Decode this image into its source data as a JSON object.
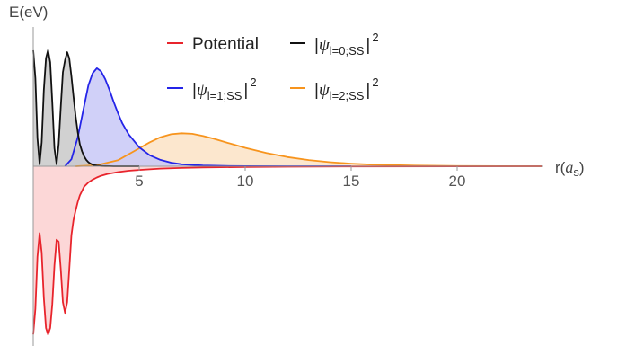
{
  "chart_data": {
    "type": "line",
    "xlabel_main": "r(",
    "xlabel_sym": "a",
    "xlabel_sub": "s",
    "xlabel_close": ")",
    "ylabel": "E(eV)",
    "xlim": [
      0,
      24
    ],
    "ylim": [
      -8,
      6.2
    ],
    "xticks": [
      5,
      10,
      15,
      20
    ],
    "grid": false,
    "legend_placement": "top-right",
    "series": [
      {
        "key": "potential",
        "legend": {
          "main": "Potential"
        },
        "color": "#e8242c",
        "fill": "#fbd0d0",
        "x": [
          0,
          0.1,
          0.2,
          0.3,
          0.4,
          0.5,
          0.6,
          0.7,
          0.8,
          0.9,
          1.0,
          1.1,
          1.2,
          1.3,
          1.4,
          1.5,
          1.6,
          1.7,
          1.8,
          1.9,
          2.0,
          2.1,
          2.2,
          2.4,
          2.6,
          2.8,
          3.0,
          3.2,
          3.5,
          4.0,
          4.5,
          5.0,
          6.0,
          7.0,
          8.0,
          10.0,
          12.0,
          15.0,
          24.0
        ],
        "values": [
          -7.8,
          -6.6,
          -4.2,
          -3.1,
          -4.0,
          -6.1,
          -7.5,
          -7.8,
          -7.5,
          -6.4,
          -4.6,
          -3.4,
          -3.5,
          -4.8,
          -6.3,
          -6.8,
          -6.3,
          -4.8,
          -3.2,
          -2.5,
          -2.05,
          -1.65,
          -1.35,
          -0.95,
          -0.75,
          -0.62,
          -0.52,
          -0.44,
          -0.36,
          -0.27,
          -0.21,
          -0.17,
          -0.11,
          -0.08,
          -0.06,
          -0.035,
          -0.02,
          -0.01,
          0.0
        ]
      },
      {
        "key": "psi0",
        "legend": {
          "pre": "|",
          "sym": "ψ",
          "sub": "l=0;SS",
          "post": "|",
          "sup": "2"
        },
        "color": "#111111",
        "fill": "#c9c9c9",
        "x": [
          0,
          0.1,
          0.2,
          0.3,
          0.4,
          0.5,
          0.6,
          0.7,
          0.8,
          0.9,
          1.0,
          1.1,
          1.2,
          1.3,
          1.4,
          1.5,
          1.6,
          1.7,
          1.8,
          1.9,
          2.0,
          2.1,
          2.2,
          2.3,
          2.4,
          2.5,
          2.6,
          2.7,
          2.8,
          2.9,
          3.0,
          3.2,
          3.4,
          3.6,
          3.8,
          4.0,
          4.5,
          5.0
        ],
        "values": [
          5.8,
          4.4,
          1.4,
          0.1,
          1.2,
          3.8,
          5.4,
          5.8,
          5.2,
          3.2,
          0.9,
          0.1,
          1.1,
          3.0,
          4.7,
          5.3,
          5.7,
          5.4,
          4.5,
          3.5,
          2.5,
          1.7,
          1.1,
          0.75,
          0.5,
          0.32,
          0.2,
          0.13,
          0.08,
          0.05,
          0.03,
          0.015,
          0.008,
          0.004,
          0.002,
          0.001,
          0.0,
          0.0
        ]
      },
      {
        "key": "psi1",
        "legend": {
          "pre": "|",
          "sym": "ψ",
          "sub": "l=1;SS",
          "post": "|",
          "sup": "2"
        },
        "color": "#2424e8",
        "fill": "#c8c8f7",
        "x": [
          1.5,
          1.8,
          2.1,
          2.4,
          2.6,
          2.8,
          3.0,
          3.2,
          3.4,
          3.6,
          3.8,
          4.0,
          4.2,
          4.5,
          5.0,
          5.5,
          6.0,
          6.5,
          7.0,
          8.0,
          9.0,
          10.0,
          12.0,
          15.0
        ],
        "values": [
          0.0,
          0.35,
          1.45,
          3.0,
          4.05,
          4.65,
          4.9,
          4.75,
          4.35,
          3.8,
          3.2,
          2.65,
          2.15,
          1.6,
          0.95,
          0.55,
          0.32,
          0.18,
          0.1,
          0.04,
          0.015,
          0.006,
          0.001,
          0.0
        ]
      },
      {
        "key": "psi2",
        "legend": {
          "pre": "|",
          "sym": "ψ",
          "sub": "l=2;SS",
          "post": "|",
          "sup": "2"
        },
        "color": "#f7941d",
        "fill": "#fbe3c6",
        "x": [
          2.0,
          3.0,
          4.0,
          5.0,
          5.5,
          6.0,
          6.5,
          7.0,
          7.5,
          8.0,
          8.5,
          9.0,
          10.0,
          11.0,
          12.0,
          13.0,
          14.0,
          15.0,
          16.0,
          18.0,
          20.0,
          22.0,
          24.0
        ],
        "values": [
          0.0,
          0.05,
          0.3,
          0.9,
          1.2,
          1.45,
          1.6,
          1.65,
          1.62,
          1.52,
          1.38,
          1.22,
          0.92,
          0.66,
          0.46,
          0.31,
          0.2,
          0.13,
          0.08,
          0.03,
          0.01,
          0.004,
          0.001
        ]
      }
    ]
  }
}
